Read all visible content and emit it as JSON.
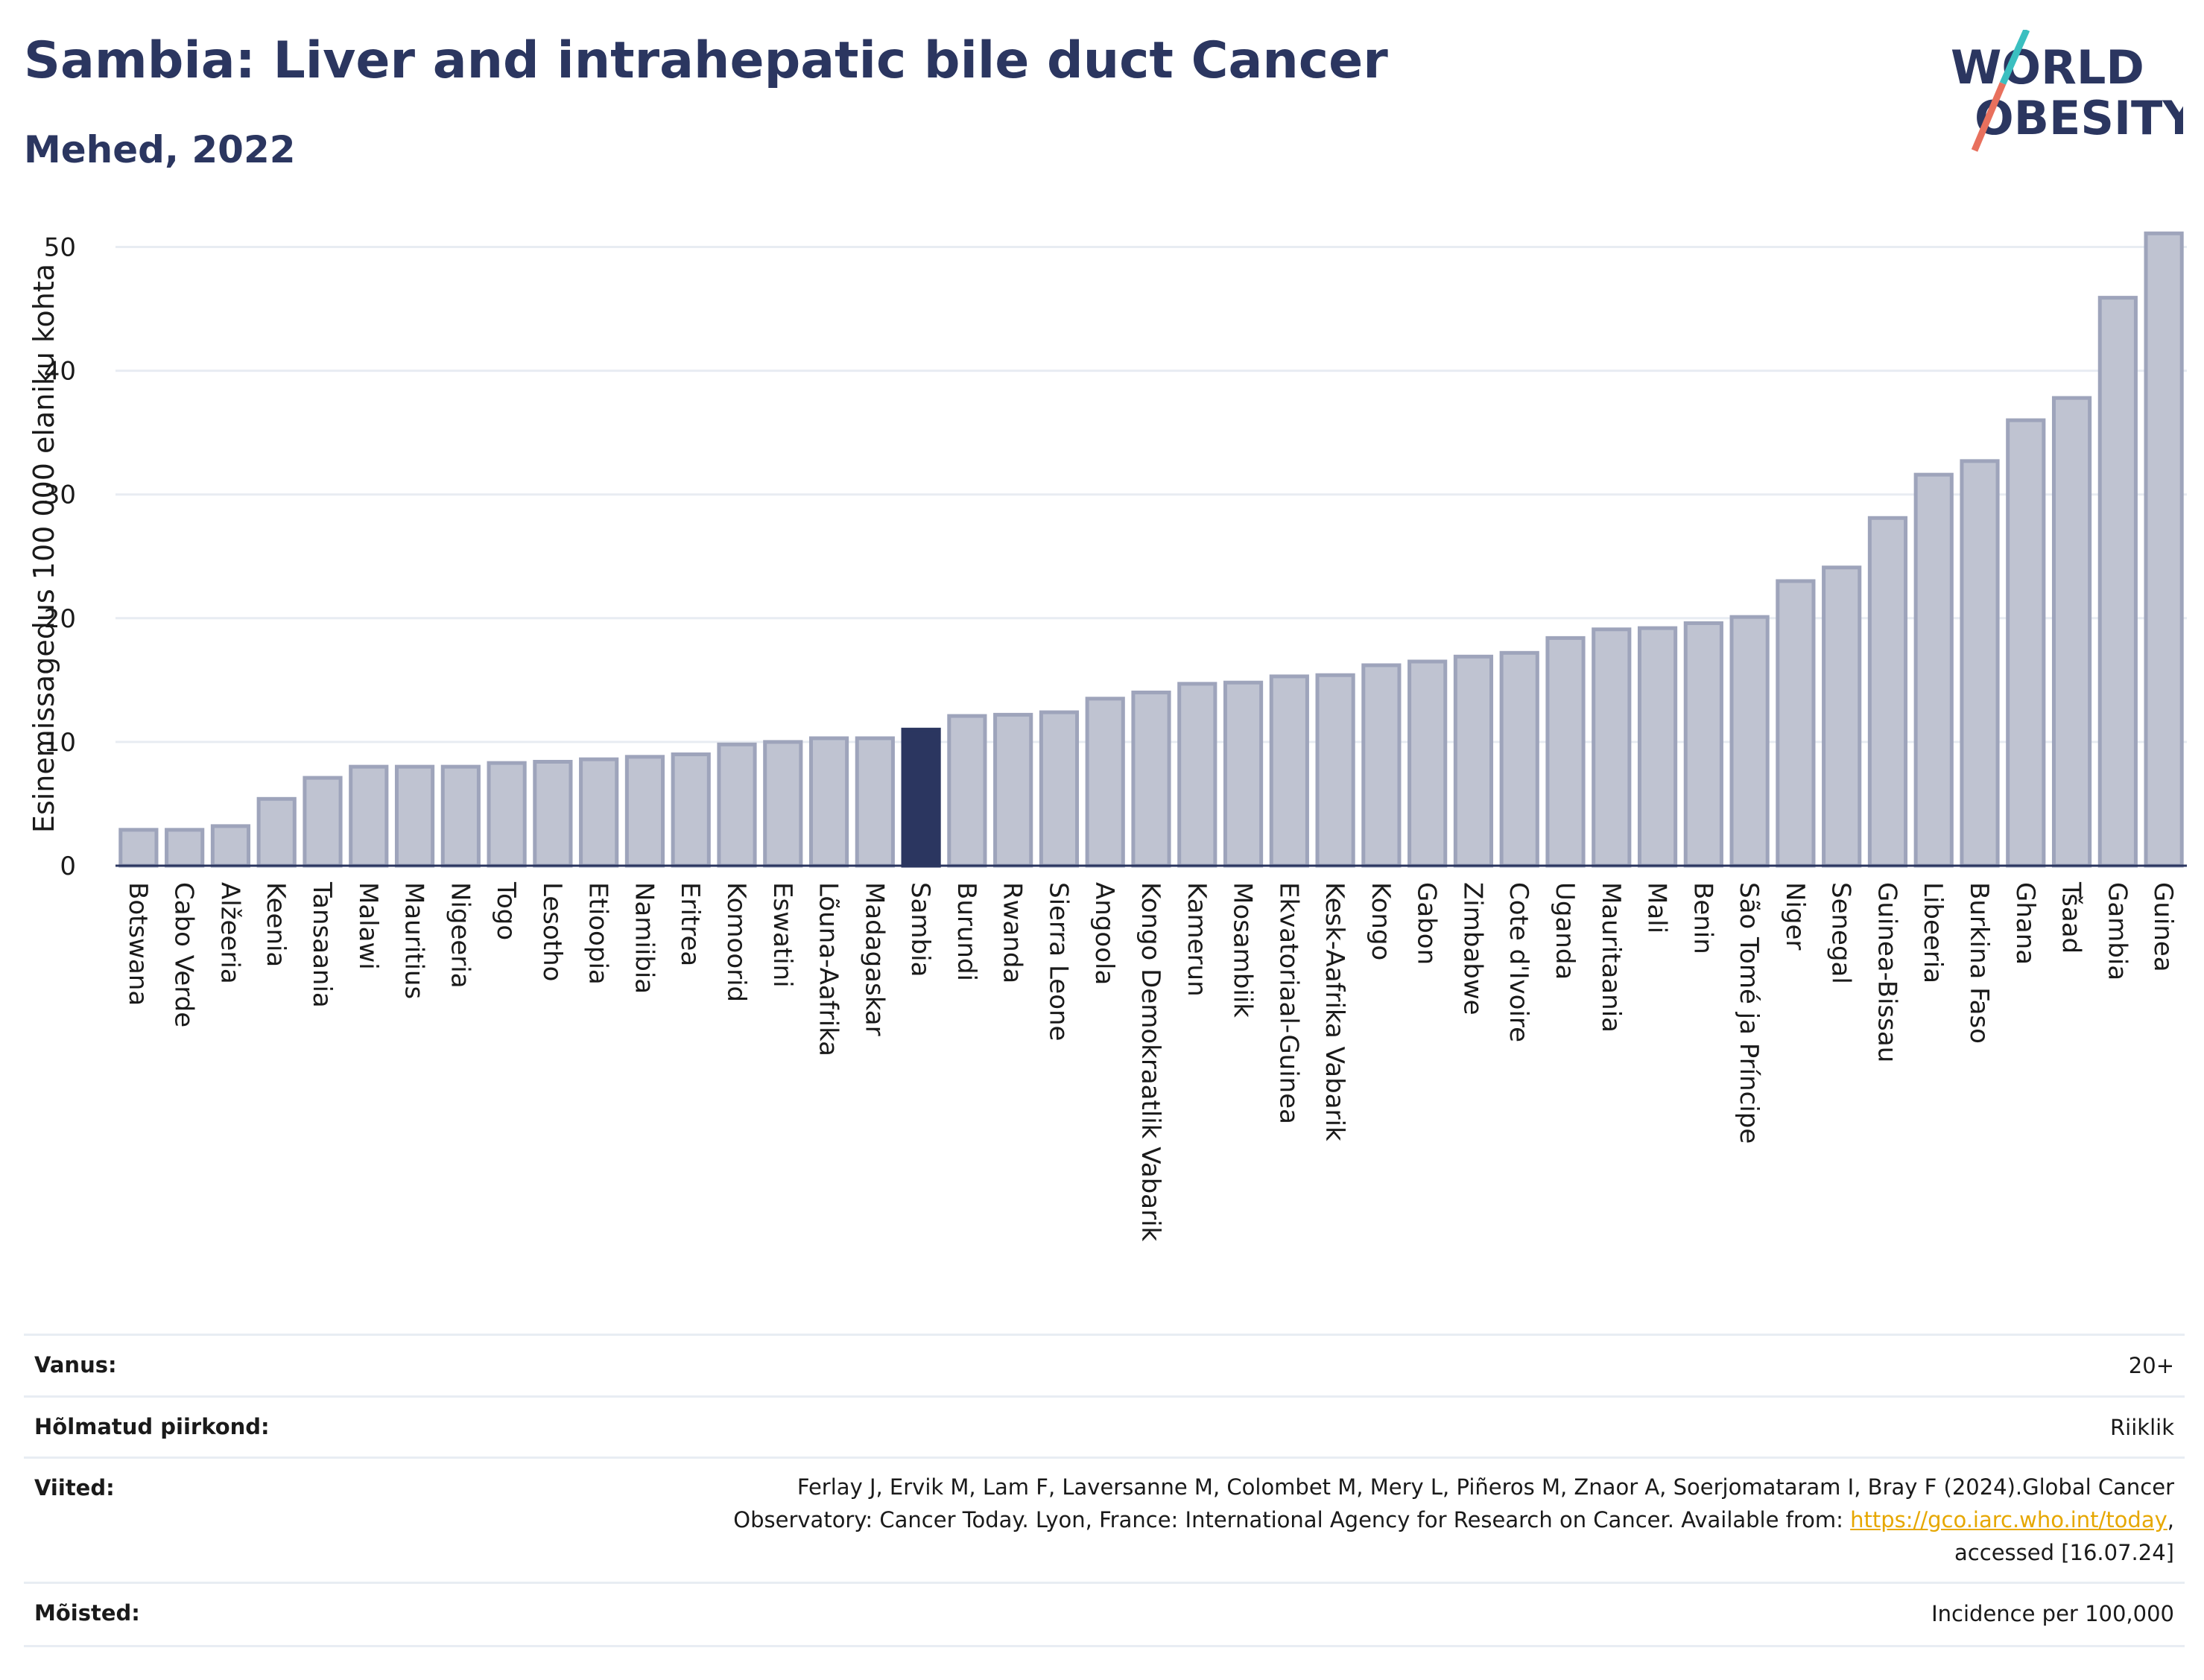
{
  "header": {
    "title": "Sambia: Liver and intrahepatic bile duct Cancer",
    "subtitle": "Mehed, 2022"
  },
  "logo": {
    "line1": "WORLD",
    "line2": "OBESITY"
  },
  "chart_data": {
    "type": "bar",
    "ylabel": "Esinemissagedus 100 000 elaniku kohta",
    "ylim": [
      0,
      52.5
    ],
    "yticks": [
      0,
      10,
      20,
      30,
      40,
      50
    ],
    "grid": true,
    "highlight": "Sambia",
    "colors": {
      "bar": "#bfc3d1",
      "bar_edge": "#9ea4bb",
      "highlight": "#2b3660",
      "grid": "#e8ecf2",
      "axis": "#2b3660"
    },
    "categories": [
      "Botswana",
      "Cabo Verde",
      "Alžeeria",
      "Keenia",
      "Tansaania",
      "Malawi",
      "Mauritius",
      "Nigeeria",
      "Togo",
      "Lesotho",
      "Etioopia",
      "Namiibia",
      "Eritrea",
      "Komoorid",
      "Eswatini",
      "Lõuna-Aafrika",
      "Madagaskar",
      "Sambia",
      "Burundi",
      "Rwanda",
      "Sierra Leone",
      "Angoola",
      "Kongo Demokraatlik Vabarik",
      "Kamerun",
      "Mosambiik",
      "Ekvatoriaal-Guinea",
      "Kesk-Aafrika Vabarik",
      "Kongo",
      "Gabon",
      "Zimbabwe",
      "Cote d'Ivoire",
      "Uganda",
      "Mauritaania",
      "Mali",
      "Benin",
      "São Tomé ja Príncipe",
      "Niger",
      "Senegal",
      "Guinea-Bissau",
      "Libeeria",
      "Burkina Faso",
      "Ghana",
      "Tšaad",
      "Gambia",
      "Guinea"
    ],
    "values": [
      2.9,
      2.9,
      3.2,
      5.4,
      7.1,
      8.0,
      8.0,
      8.0,
      8.3,
      8.4,
      8.6,
      8.8,
      9.0,
      9.8,
      10.0,
      10.3,
      10.3,
      11.0,
      12.1,
      12.2,
      12.4,
      13.5,
      14.0,
      14.7,
      14.8,
      15.3,
      15.4,
      16.2,
      16.5,
      16.9,
      17.2,
      18.4,
      19.1,
      19.2,
      19.6,
      20.1,
      23.0,
      24.1,
      28.1,
      31.6,
      32.7,
      36.0,
      37.8,
      45.9,
      51.1
    ]
  },
  "meta": {
    "age_label": "Vanus:",
    "age_value": "20+",
    "region_label": "Hõlmatud piirkond:",
    "region_value": "Riiklik",
    "refs_label": "Viited:",
    "refs_line1": "Ferlay J, Ervik M, Lam F, Laversanne M, Colombet M, Mery L, Piñeros M, Znaor A, Soerjomataram I, Bray F (2024).Global Cancer",
    "refs_line2_pre": "Observatory: Cancer Today. Lyon, France: International Agency for Research on Cancer. Available from: ",
    "refs_link": "https://gco.iarc.who.int/today",
    "refs_line2_post": ",",
    "refs_line3": "accessed [16.07.24]",
    "def_label": "Mõisted:",
    "def_value": "Incidence per 100,000"
  }
}
